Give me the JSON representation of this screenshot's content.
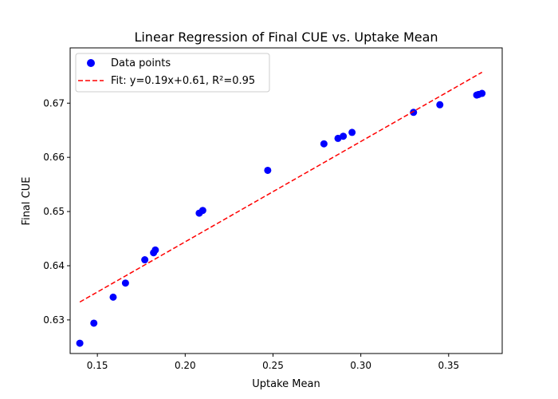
{
  "chart_data": {
    "type": "scatter",
    "title": "Linear Regression of Final CUE vs. Uptake Mean",
    "xlabel": "Uptake Mean",
    "ylabel": "Final CUE",
    "xlim": [
      0.1345,
      0.3805
    ],
    "ylim": [
      0.6238,
      0.6802
    ],
    "xticks": [
      0.15,
      0.2,
      0.25,
      0.3,
      0.35
    ],
    "xtick_labels": [
      "0.15",
      "0.20",
      "0.25",
      "0.30",
      "0.35"
    ],
    "yticks": [
      0.63,
      0.64,
      0.65,
      0.66,
      0.67
    ],
    "ytick_labels": [
      "0.63",
      "0.64",
      "0.65",
      "0.66",
      "0.67"
    ],
    "grid": false,
    "legend_position": "upper-left",
    "series": [
      {
        "name": "Data points",
        "kind": "scatter",
        "color": "#0000ff",
        "x": [
          0.14,
          0.148,
          0.159,
          0.166,
          0.177,
          0.182,
          0.183,
          0.208,
          0.21,
          0.247,
          0.279,
          0.287,
          0.29,
          0.295,
          0.33,
          0.345,
          0.366,
          0.367,
          0.369
        ],
        "y": [
          0.6257,
          0.6294,
          0.6342,
          0.6368,
          0.6411,
          0.6424,
          0.6429,
          0.6497,
          0.6502,
          0.6576,
          0.6625,
          0.6635,
          0.6639,
          0.6646,
          0.6683,
          0.6697,
          0.6715,
          0.6716,
          0.6718
        ]
      },
      {
        "name": "Fit: y=0.19x+0.61, R²=0.95",
        "kind": "line",
        "style": "dashed",
        "color": "#ff0000",
        "x": [
          0.14,
          0.369
        ],
        "y": [
          0.6333,
          0.6757
        ]
      }
    ]
  }
}
